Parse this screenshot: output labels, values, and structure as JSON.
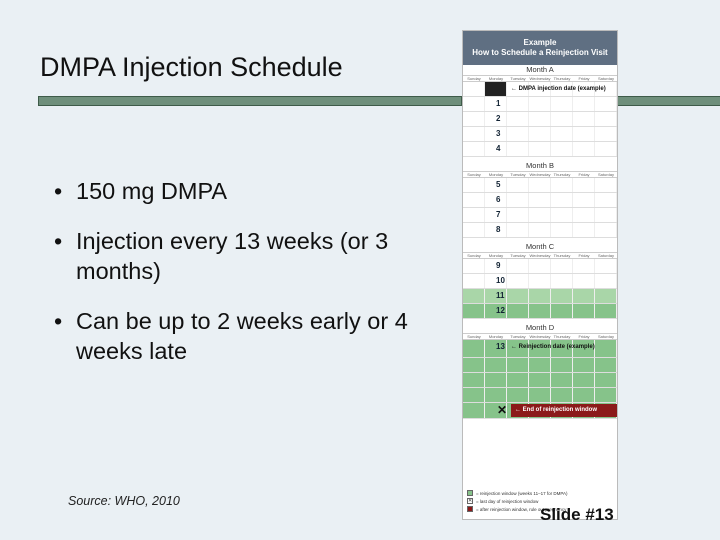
{
  "slide": {
    "title": "DMPA Injection Schedule",
    "bullets": [
      "150 mg DMPA",
      "Injection every 13 weeks (or 3 months)",
      "Can be up to 2 weeks early or 4 weeks late"
    ],
    "source": "Source: WHO, 2010",
    "footer": "Slide #13"
  },
  "calendar": {
    "header_line1": "Example",
    "header_line2": "How to Schedule a Reinjection Visit",
    "days_of_week": [
      "Sunday",
      "Monday",
      "Tuesday",
      "Wednesday",
      "Thursday",
      "Friday",
      "Saturday"
    ],
    "months": [
      {
        "name": "Month A",
        "note": "DMPA injection date (example)",
        "weeks": [
          "1",
          "2",
          "3",
          "4"
        ]
      },
      {
        "name": "Month B",
        "weeks": [
          "5",
          "6",
          "7",
          "8"
        ]
      },
      {
        "name": "Month C",
        "weeks": [
          "9",
          "10",
          "11",
          "12"
        ]
      },
      {
        "name": "Month D",
        "note": "Reinjection date (example)",
        "weeks": [
          "13",
          "",
          "",
          "",
          "",
          ""
        ],
        "end_label": "End of reinjection window"
      }
    ],
    "legend": [
      "= reinjection window (weeks 11–17 for DMPA)",
      "= last day of reinjection window",
      "= after reinjection window, rule out pregnancy"
    ],
    "colors": {
      "header": "#5f6f82",
      "window": "#86c38a",
      "end": "#8b1a1a",
      "accent_rule": "#6f8f7b"
    }
  }
}
